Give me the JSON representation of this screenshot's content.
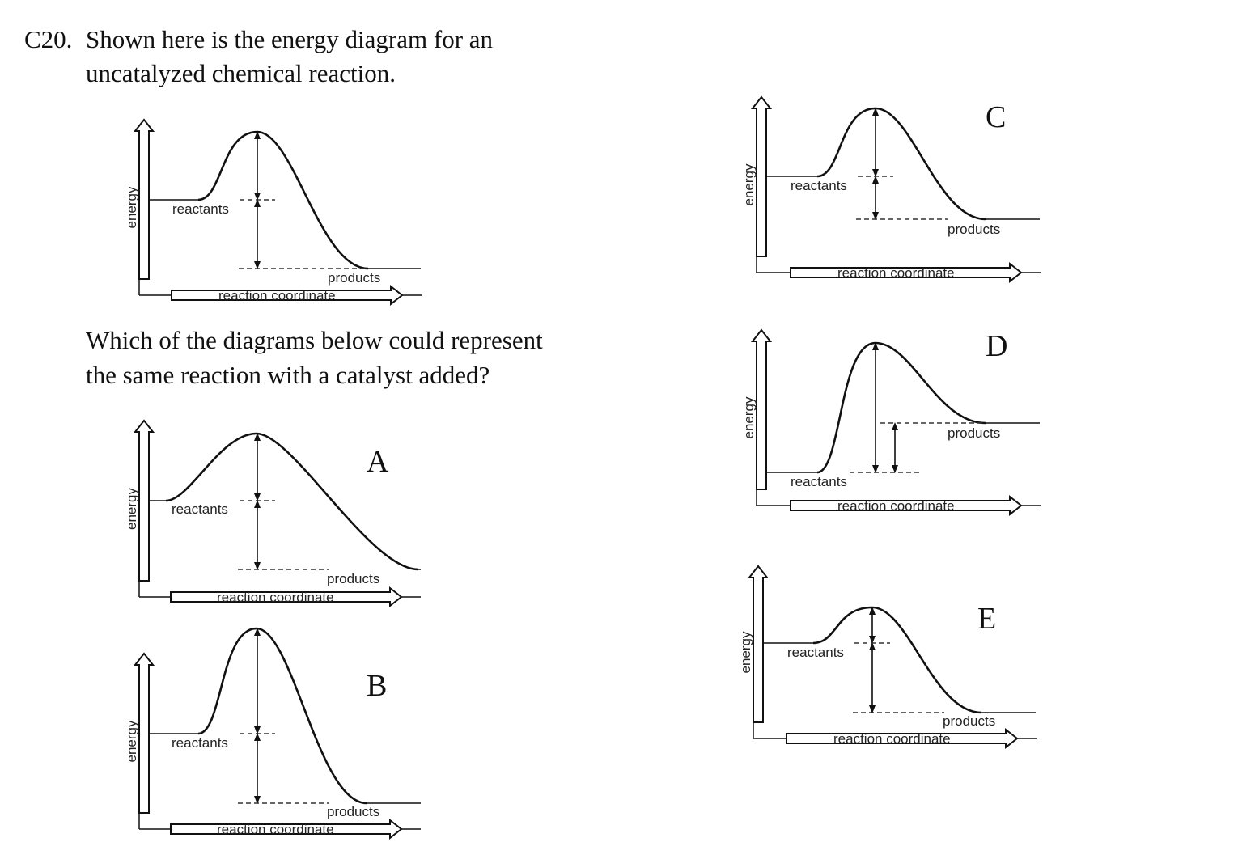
{
  "question": {
    "number": "C20.",
    "line1": "Shown here is the energy diagram for an",
    "line2": "uncatalyzed chemical reaction.",
    "prompt_line1": "Which of the diagrams below could represent",
    "prompt_line2": "the same reaction with a catalyst added?"
  },
  "labels": {
    "energy": "energy",
    "reactants": "reactants",
    "products": "products",
    "reaction_coordinate": "reaction coordinate"
  },
  "options": [
    "A",
    "B",
    "C",
    "D",
    "E"
  ]
}
